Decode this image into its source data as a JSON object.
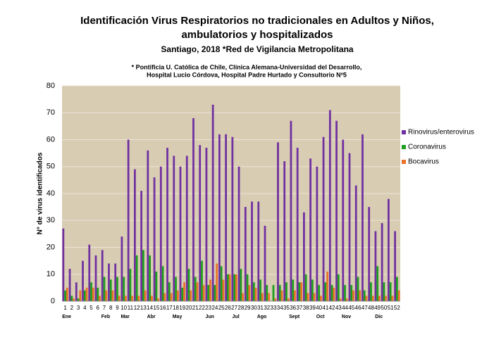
{
  "chart_data": {
    "type": "bar",
    "title": [
      "Identificación Virus Respiratorios no tradicionales en Adultos y Niños,",
      "ambulatorios y hospitalizados"
    ],
    "subtitle": "Santiago, 2018 *Red de Vigilancia Metropolitana",
    "note": [
      "* Pontificia U. Católica de Chile, Clínica Alemana-Universidad del Desarrollo,",
      "Hospital Lucio Córdova, Hospital Padre Hurtado y Consultorio Nº5"
    ],
    "y_label": "N° de virus identificados",
    "categories": [
      "1",
      "2",
      "3",
      "4",
      "5",
      "6",
      "7",
      "8",
      "9",
      "10",
      "11",
      "12",
      "13",
      "14",
      "15",
      "16",
      "17",
      "18",
      "19",
      "20",
      "21",
      "22",
      "23",
      "24",
      "25",
      "26",
      "27",
      "28",
      "29",
      "30",
      "31",
      "32",
      "33",
      "34",
      "35",
      "36",
      "37",
      "38",
      "39",
      "40",
      "41",
      "42",
      "43",
      "44",
      "45",
      "46",
      "47",
      "48",
      "49",
      "50",
      "51",
      "52"
    ],
    "month_categories": [
      "Ene",
      null,
      null,
      null,
      null,
      null,
      "Feb",
      null,
      null,
      "Mar",
      null,
      null,
      null,
      "Abr",
      null,
      null,
      null,
      "May",
      null,
      null,
      null,
      null,
      "Jun",
      null,
      null,
      null,
      "Jul",
      null,
      null,
      null,
      "Ago",
      null,
      null,
      null,
      null,
      "Sept",
      null,
      null,
      null,
      "Oct",
      null,
      null,
      null,
      "Nov",
      null,
      null,
      null,
      null,
      "Dic",
      null,
      null,
      null
    ],
    "series": [
      {
        "name": "Rinovirus/enterovirus",
        "color": "#7030a0",
        "values": [
          27,
          12,
          7,
          15,
          21,
          17,
          19,
          14,
          14,
          24,
          60,
          49,
          41,
          56,
          46,
          50,
          57,
          54,
          50,
          54,
          68,
          58,
          57,
          73,
          62,
          62,
          61,
          50,
          35,
          37,
          37,
          28,
          0,
          59,
          52,
          67,
          57,
          33,
          53,
          50,
          61,
          71,
          67,
          60,
          55,
          43,
          62,
          35,
          26,
          29,
          38,
          26
        ]
      },
      {
        "name": "Coronavirus",
        "color": "#1e9e1e",
        "values": [
          4,
          2,
          1,
          4,
          7,
          5,
          9,
          8,
          9,
          9,
          12,
          17,
          19,
          17,
          11,
          13,
          7,
          9,
          5,
          12,
          9,
          15,
          6,
          6,
          13,
          10,
          10,
          12,
          10,
          7,
          8,
          6,
          6,
          6,
          7,
          8,
          7,
          10,
          8,
          6,
          7,
          6,
          10,
          6,
          6,
          9,
          4,
          7,
          13,
          7,
          7,
          9
        ]
      },
      {
        "name": "Bocavirus",
        "color": "#e97128",
        "values": [
          5,
          1,
          4,
          5,
          5,
          2,
          4,
          4,
          2,
          2,
          2,
          2,
          4,
          2,
          1,
          3,
          3,
          4,
          7,
          4,
          7,
          6,
          8,
          14,
          8,
          10,
          10,
          3,
          6,
          5,
          3,
          3,
          1,
          4,
          1,
          4,
          7,
          3,
          3,
          2,
          11,
          5,
          1,
          1,
          4,
          4,
          2,
          2,
          2,
          2,
          2,
          4
        ]
      }
    ],
    "ylim": [
      0,
      80
    ],
    "yticks": [
      0,
      10,
      20,
      30,
      40,
      50,
      60,
      70,
      80
    ],
    "grid": true,
    "legend": "right"
  }
}
